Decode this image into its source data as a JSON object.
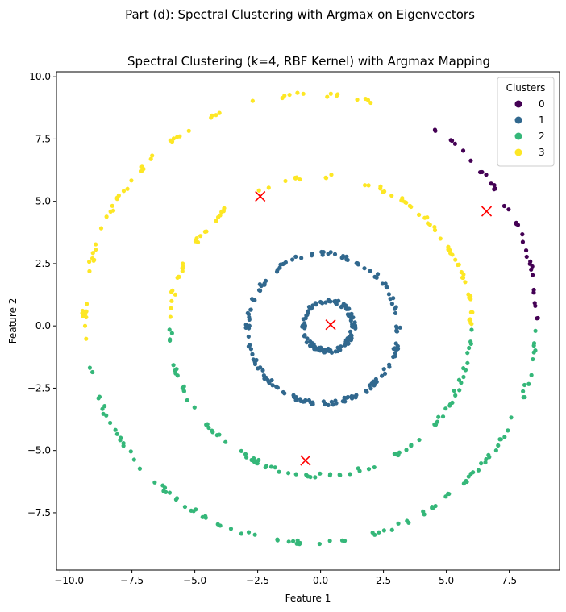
{
  "figure_title": "Part (d): Spectral Clustering with Argmax on Eigenvectors",
  "chart_data": {
    "type": "scatter",
    "title": "Spectral Clustering (k=4, RBF Kernel) with Argmax Mapping",
    "xlabel": "Feature 1",
    "ylabel": "Feature 2",
    "xlim": [
      -10.5,
      9.5
    ],
    "ylim": [
      -9.8,
      10.2
    ],
    "xticks": [
      -10.0,
      -7.5,
      -5.0,
      -2.5,
      0.0,
      2.5,
      5.0,
      7.5
    ],
    "xtick_labels": [
      "−10.0",
      "−7.5",
      "−5.0",
      "−2.5",
      "0.0",
      "2.5",
      "5.0",
      "7.5"
    ],
    "yticks": [
      -7.5,
      -5.0,
      -2.5,
      0.0,
      2.5,
      5.0,
      7.5,
      10.0
    ],
    "ytick_labels": [
      "−7.5",
      "−5.0",
      "−2.5",
      "0.0",
      "2.5",
      "5.0",
      "7.5",
      "10.0"
    ],
    "grid": false,
    "legend": {
      "title": "Clusters",
      "position": "top-right",
      "entries": [
        {
          "label": "0",
          "color": "#440154"
        },
        {
          "label": "1",
          "color": "#31688e"
        },
        {
          "label": "2",
          "color": "#35b779"
        },
        {
          "label": "3",
          "color": "#fde725"
        }
      ]
    },
    "rings": [
      {
        "center": [
          0.3,
          0.0
        ],
        "radius": 1.0,
        "count": 120,
        "segments": [
          {
            "from": 0,
            "to": 360,
            "cluster": 1
          }
        ]
      },
      {
        "center": [
          0.1,
          -0.1
        ],
        "radius": 3.0,
        "count": 160,
        "segments": [
          {
            "from": 0,
            "to": 360,
            "cluster": 1
          }
        ]
      },
      {
        "center": [
          0.0,
          0.0
        ],
        "radius": 6.0,
        "count": 170,
        "segments": [
          {
            "from": 0,
            "to": 180,
            "cluster": 3
          },
          {
            "from": 180,
            "to": 360,
            "cluster": 2
          }
        ]
      },
      {
        "center": [
          -0.4,
          0.3
        ],
        "radius": 9.0,
        "count": 190,
        "segments": [
          {
            "from": 0,
            "to": 58,
            "cluster": 0
          },
          {
            "from": 58,
            "to": 188,
            "cluster": 3
          },
          {
            "from": 188,
            "to": 360,
            "cluster": 2
          }
        ]
      }
    ],
    "centroids": {
      "color": "#ff0000",
      "marker": "x",
      "points": [
        [
          -2.4,
          5.2
        ],
        [
          6.6,
          4.6
        ],
        [
          0.4,
          0.05
        ],
        [
          -0.6,
          -5.4
        ]
      ]
    }
  }
}
